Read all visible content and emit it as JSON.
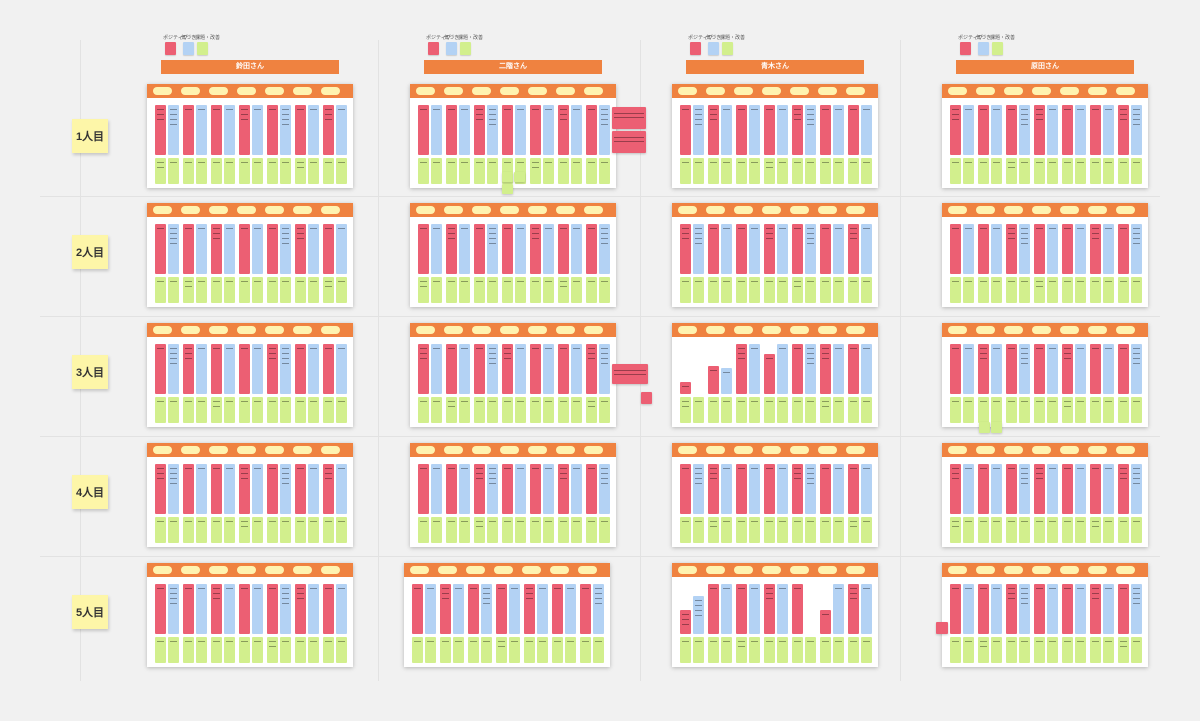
{
  "colors": {
    "pink": "#ec5f73",
    "blue": "#b3d2f4",
    "green": "#d2ef8d",
    "orange": "#ef8240",
    "yellow_pill": "#fff3b0",
    "row_label": "#fdf6a8"
  },
  "persons": [
    {
      "name": "鈴田さん",
      "legend": [
        "ポジティブ",
        "気づき",
        "課題・改善"
      ]
    },
    {
      "name": "二階さん",
      "legend": [
        "ポジティブ",
        "気づき",
        "課題・改善"
      ]
    },
    {
      "name": "青木さん",
      "legend": [
        "ポジティブ",
        "気づき",
        "課題・改善"
      ]
    },
    {
      "name": "原田さん",
      "legend": [
        "ポジティブ",
        "気づき",
        "課題・改善"
      ]
    }
  ],
  "rows": [
    {
      "label": "1人目"
    },
    {
      "label": "2人目"
    },
    {
      "label": "3人目"
    },
    {
      "label": "4人目"
    },
    {
      "label": "5人目"
    }
  ],
  "board": {
    "stage_count": 7
  }
}
